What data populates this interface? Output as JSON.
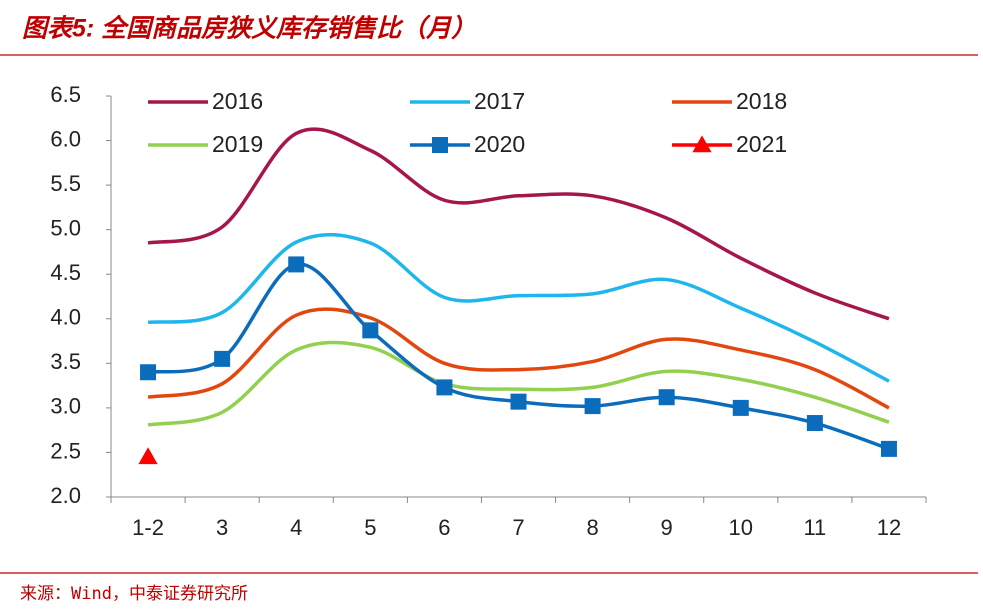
{
  "chart_data": {
    "type": "line",
    "title": "图表5: 全国商品房狭义库存销售比（月）",
    "source": "来源：Wind，中泰证券研究所",
    "categories": [
      "1-2",
      "3",
      "4",
      "5",
      "6",
      "7",
      "8",
      "9",
      "10",
      "11",
      "12"
    ],
    "ylim": [
      2.0,
      6.5
    ],
    "yticks": [
      {
        "value": 2.0,
        "label": "2.0"
      },
      2.5,
      {
        "value": 3.0,
        "label": "3.0"
      },
      3.5,
      {
        "value": 4.0,
        "label": "4.0"
      },
      4.5,
      {
        "value": 5.0,
        "label": "5.0"
      },
      5.5,
      {
        "value": 6.0,
        "label": "6.0"
      },
      6.5
    ],
    "grid": false,
    "series": [
      {
        "name": "2016",
        "color": "#a5174c",
        "values": [
          4.85,
          5.03,
          6.08,
          5.89,
          5.33,
          5.38,
          5.38,
          5.13,
          4.68,
          4.29,
          4.0
        ]
      },
      {
        "name": "2017",
        "color": "#1fb6ee",
        "values": [
          3.96,
          4.07,
          4.86,
          4.85,
          4.24,
          4.26,
          4.28,
          4.44,
          4.12,
          3.74,
          3.3
        ]
      },
      {
        "name": "2018",
        "color": "#e2470f",
        "values": [
          3.12,
          3.27,
          4.04,
          4.01,
          3.5,
          3.43,
          3.52,
          3.77,
          3.65,
          3.43,
          3.0
        ]
      },
      {
        "name": "2019",
        "color": "#92d050",
        "values": [
          2.81,
          2.95,
          3.65,
          3.68,
          3.27,
          3.21,
          3.23,
          3.41,
          3.32,
          3.12,
          2.84
        ]
      },
      {
        "name": "2020",
        "color": "#0b6cbc",
        "marker": "square",
        "values": [
          3.4,
          3.55,
          4.61,
          3.87,
          3.23,
          3.07,
          3.02,
          3.12,
          3.0,
          2.83,
          2.54
        ]
      },
      {
        "name": "2021",
        "color": "#ff0000",
        "marker": "triangle",
        "values": [
          2.45,
          null,
          null,
          null,
          null,
          null,
          null,
          null,
          null,
          null,
          null
        ]
      }
    ]
  }
}
